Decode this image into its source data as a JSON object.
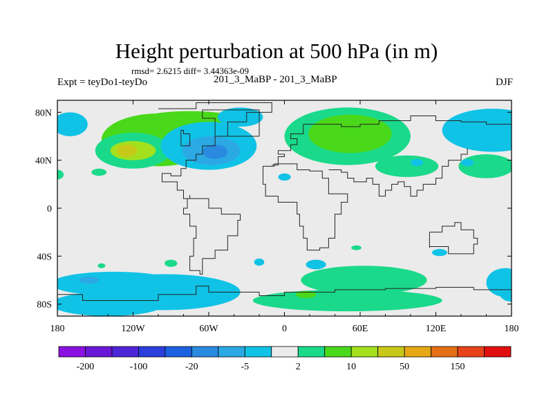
{
  "chart_data": {
    "type": "heatmap",
    "title": "Height perturbation at 500 hPa (in m)",
    "stats": {
      "rmsd": "2.6215",
      "diff": "3.44363e-09",
      "text": "rmsd= 2.6215  diff= 3.44363e-09"
    },
    "left_label": "Expt = teyDo1-teyDo",
    "center_label": "201_3_MaBP - 201_3_MaBP",
    "right_label": "DJF",
    "xlim": [
      -180,
      180
    ],
    "ylim": [
      -90,
      90
    ],
    "x_ticks": [
      {
        "value": -180,
        "label": "180"
      },
      {
        "value": -120,
        "label": "120W"
      },
      {
        "value": -60,
        "label": "60W"
      },
      {
        "value": 0,
        "label": "0"
      },
      {
        "value": 60,
        "label": "60E"
      },
      {
        "value": 120,
        "label": "120E"
      },
      {
        "value": 180,
        "label": "180"
      }
    ],
    "y_ticks": [
      {
        "value": 80,
        "label": "80N"
      },
      {
        "value": 40,
        "label": "40N"
      },
      {
        "value": 0,
        "label": "0"
      },
      {
        "value": -40,
        "label": "40S"
      },
      {
        "value": -80,
        "label": "80S"
      }
    ],
    "colorbar": {
      "colors": [
        "#8a12e0",
        "#6a16d6",
        "#4f25d8",
        "#2a3fdc",
        "#1c62e0",
        "#2a8ae0",
        "#2aa9e4",
        "#10c3e6",
        "#ebebeb",
        "#1ad98a",
        "#4ad81a",
        "#a4e01e",
        "#c8c818",
        "#e6a814",
        "#e46f14",
        "#e8421a",
        "#e10f0f"
      ],
      "labels": [
        {
          "after_index": 0,
          "label": "-200"
        },
        {
          "after_index": 2,
          "label": "-100"
        },
        {
          "after_index": 4,
          "label": "-20"
        },
        {
          "after_index": 6,
          "label": "-5"
        },
        {
          "after_index": 8,
          "label": "2"
        },
        {
          "after_index": 10,
          "label": "10"
        },
        {
          "after_index": 12,
          "label": "50"
        },
        {
          "after_index": 14,
          "label": "150"
        }
      ]
    },
    "blobs": [
      {
        "lon": -75,
        "lat": 73,
        "rx": 40,
        "ry": 8,
        "level": 2
      },
      {
        "lon": -100,
        "lat": 57,
        "rx": 45,
        "ry": 22,
        "level": 2
      },
      {
        "lon": -120,
        "lat": 48,
        "rx": 30,
        "ry": 15,
        "level": 1
      },
      {
        "lon": -120,
        "lat": 48,
        "rx": 18,
        "ry": 8,
        "level": 3
      },
      {
        "lon": -125,
        "lat": 48,
        "rx": 8,
        "ry": 5,
        "level": 4
      },
      {
        "lon": -60,
        "lat": 52,
        "rx": 38,
        "ry": 20,
        "level": -1
      },
      {
        "lon": -58,
        "lat": 48,
        "rx": 23,
        "ry": 12,
        "level": -2
      },
      {
        "lon": -55,
        "lat": 47,
        "rx": 10,
        "ry": 6,
        "level": -3
      },
      {
        "lon": -35,
        "lat": 76,
        "rx": 18,
        "ry": 8,
        "level": -1
      },
      {
        "lon": -170,
        "lat": 70,
        "rx": 14,
        "ry": 10,
        "level": -1
      },
      {
        "lon": -180,
        "lat": 28,
        "rx": 5,
        "ry": 4,
        "level": 1
      },
      {
        "lon": -147,
        "lat": 30,
        "rx": 6,
        "ry": 3,
        "level": 1
      },
      {
        "lon": 0,
        "lat": 26,
        "rx": 5,
        "ry": 3,
        "level": -1
      },
      {
        "lon": 50,
        "lat": 60,
        "rx": 50,
        "ry": 24,
        "level": 1
      },
      {
        "lon": 52,
        "lat": 62,
        "rx": 33,
        "ry": 16,
        "level": 2
      },
      {
        "lon": 97,
        "lat": 35,
        "rx": 25,
        "ry": 9,
        "level": 1
      },
      {
        "lon": 160,
        "lat": 35,
        "rx": 22,
        "ry": 10,
        "level": 1
      },
      {
        "lon": 165,
        "lat": 65,
        "rx": 40,
        "ry": 18,
        "level": -1
      },
      {
        "lon": 105,
        "lat": 38,
        "rx": 5,
        "ry": 3,
        "level": -1
      },
      {
        "lon": 145,
        "lat": 38,
        "rx": 5,
        "ry": 3,
        "level": -1
      },
      {
        "lon": -135,
        "lat": -63,
        "rx": 50,
        "ry": 10,
        "level": -1
      },
      {
        "lon": -95,
        "lat": -70,
        "rx": 60,
        "ry": 15,
        "level": -1
      },
      {
        "lon": -140,
        "lat": -80,
        "rx": 45,
        "ry": 10,
        "level": -1
      },
      {
        "lon": -155,
        "lat": -60,
        "rx": 8,
        "ry": 3,
        "level": -2
      },
      {
        "lon": -145,
        "lat": -48,
        "rx": 3,
        "ry": 2,
        "level": 1
      },
      {
        "lon": -90,
        "lat": -46,
        "rx": 5,
        "ry": 3,
        "level": 1
      },
      {
        "lon": -20,
        "lat": -45,
        "rx": 4,
        "ry": 3,
        "level": -1
      },
      {
        "lon": 25,
        "lat": -47,
        "rx": 8,
        "ry": 4,
        "level": -1
      },
      {
        "lon": 57,
        "lat": -33,
        "rx": 4,
        "ry": 2,
        "level": 1
      },
      {
        "lon": 63,
        "lat": -60,
        "rx": 50,
        "ry": 12,
        "level": 1
      },
      {
        "lon": 50,
        "lat": -77,
        "rx": 75,
        "ry": 9,
        "level": 1
      },
      {
        "lon": 17,
        "lat": -72,
        "rx": 8,
        "ry": 3,
        "level": 2
      },
      {
        "lon": 70,
        "lat": -58,
        "rx": 32,
        "ry": 6,
        "level": 1
      },
      {
        "lon": 123,
        "lat": -37,
        "rx": 6,
        "ry": 3,
        "level": -1
      },
      {
        "lon": 175,
        "lat": -62,
        "rx": 15,
        "ry": 12,
        "level": -1
      },
      {
        "lon": 180,
        "lat": -70,
        "rx": 10,
        "ry": 8,
        "level": -1
      }
    ],
    "coastlines": [
      [
        [
          -100,
          83
        ],
        [
          -85,
          83
        ],
        [
          -70,
          88
        ],
        [
          -15,
          88
        ],
        [
          -10,
          80
        ],
        [
          -30,
          72
        ],
        [
          -45,
          60
        ],
        [
          -55,
          52
        ],
        [
          -65,
          45
        ],
        [
          -70,
          40
        ],
        [
          -78,
          33
        ],
        [
          -82,
          27
        ],
        [
          -90,
          29
        ],
        [
          -97,
          22
        ],
        [
          -85,
          15
        ],
        [
          -80,
          8
        ],
        [
          -75,
          8
        ],
        [
          -77,
          0
        ],
        [
          -80,
          -5
        ],
        [
          -75,
          -15
        ],
        [
          -70,
          -25
        ],
        [
          -72,
          -40
        ],
        [
          -75,
          -52
        ],
        [
          -67,
          -55
        ],
        [
          -65,
          -42
        ],
        [
          -55,
          -35
        ],
        [
          -45,
          -23
        ],
        [
          -37,
          -10
        ],
        [
          -35,
          -5
        ],
        [
          -50,
          0
        ],
        [
          -60,
          8
        ],
        [
          -75,
          11
        ]
      ],
      [
        [
          -10,
          36
        ],
        [
          -5,
          43
        ],
        [
          0,
          45
        ],
        [
          -5,
          48
        ],
        [
          5,
          53
        ],
        [
          10,
          58
        ],
        [
          5,
          62
        ],
        [
          15,
          70
        ],
        [
          30,
          70
        ],
        [
          45,
          68
        ],
        [
          60,
          70
        ],
        [
          75,
          73
        ],
        [
          100,
          77
        ],
        [
          120,
          73
        ],
        [
          140,
          72
        ],
        [
          160,
          70
        ],
        [
          180,
          68
        ]
      ],
      [
        [
          -8,
          35
        ],
        [
          -17,
          20
        ],
        [
          -15,
          10
        ],
        [
          -5,
          5
        ],
        [
          10,
          3
        ],
        [
          10,
          -5
        ],
        [
          12,
          -15
        ],
        [
          15,
          -25
        ],
        [
          18,
          -35
        ],
        [
          28,
          -33
        ],
        [
          35,
          -25
        ],
        [
          40,
          -15
        ],
        [
          40,
          -5
        ],
        [
          45,
          5
        ],
        [
          50,
          12
        ],
        [
          43,
          12
        ],
        [
          35,
          25
        ],
        [
          30,
          31
        ],
        [
          20,
          32
        ],
        [
          10,
          37
        ],
        [
          -8,
          35
        ]
      ],
      [
        [
          35,
          32
        ],
        [
          45,
          30
        ],
        [
          50,
          25
        ],
        [
          55,
          22
        ],
        [
          60,
          22
        ],
        [
          65,
          25
        ],
        [
          70,
          20
        ],
        [
          75,
          10
        ],
        [
          80,
          15
        ],
        [
          85,
          20
        ],
        [
          90,
          22
        ],
        [
          95,
          18
        ],
        [
          100,
          10
        ],
        [
          105,
          15
        ],
        [
          110,
          20
        ],
        [
          120,
          25
        ],
        [
          125,
          35
        ],
        [
          130,
          40
        ],
        [
          140,
          45
        ],
        [
          145,
          50
        ]
      ],
      [
        [
          115,
          -20
        ],
        [
          125,
          -15
        ],
        [
          135,
          -12
        ],
        [
          140,
          -18
        ],
        [
          150,
          -25
        ],
        [
          153,
          -30
        ],
        [
          150,
          -38
        ],
        [
          140,
          -38
        ],
        [
          130,
          -32
        ],
        [
          115,
          -33
        ],
        [
          115,
          -20
        ]
      ],
      [
        [
          -180,
          -72
        ],
        [
          -160,
          -77
        ],
        [
          -100,
          -72
        ],
        [
          -70,
          -65
        ],
        [
          -60,
          -70
        ],
        [
          -20,
          -73
        ],
        [
          0,
          -70
        ],
        [
          40,
          -68
        ],
        [
          80,
          -67
        ],
        [
          120,
          -66
        ],
        [
          150,
          -68
        ],
        [
          180,
          -72
        ]
      ],
      [
        [
          -55,
          60
        ],
        [
          -45,
          60
        ],
        [
          -20,
          70
        ],
        [
          -20,
          82
        ],
        [
          -60,
          82
        ],
        [
          -65,
          75
        ],
        [
          -55,
          60
        ]
      ],
      [
        [
          -75,
          62
        ],
        [
          -80,
          65
        ],
        [
          -82,
          52
        ],
        [
          -75,
          55
        ],
        [
          -75,
          62
        ]
      ]
    ]
  }
}
